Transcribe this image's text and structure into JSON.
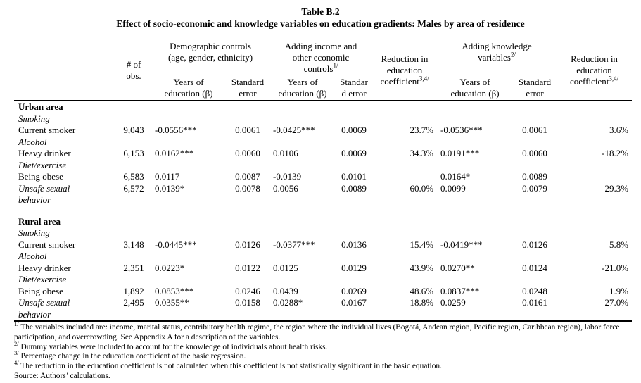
{
  "title": "Table B.2",
  "subtitle": "Effect of socio-economic and knowledge variables on education gradients: Males by area of residence",
  "table": {
    "header": {
      "obs": "# of\nobs.",
      "groups": [
        {
          "label": "Demographic controls\n(age, gender, ethnicity)",
          "sup": ""
        },
        {
          "label": "Adding income and\nother economic\ncontrols",
          "sup": "1/"
        },
        {
          "label": "Adding knowledge\nvariables",
          "sup": "2/"
        }
      ],
      "reduction1": {
        "label": "Reduction in\neducation\ncoefficient",
        "sup": "3,4/"
      },
      "reduction2": {
        "label": "Reduction in\neducation\ncoefficient",
        "sup": "3,4/"
      },
      "sub": [
        "Years of\neducation (β)",
        "Standard\nerror",
        "Years of\neducation (β)",
        "Standar\nd error",
        "Years of\neducation (β)",
        "Standard\nerror"
      ]
    },
    "sections": [
      {
        "rows": [
          {
            "label": "Urban area",
            "label_style": "bold",
            "cells": []
          },
          {
            "label": "Smoking",
            "label_style": "italic",
            "cells": []
          },
          {
            "label": "Current smoker",
            "label_style": "normal",
            "cells": [
              "9,043",
              "-0.0556***",
              "0.0061",
              "-0.0425***",
              "0.0069",
              "23.7%",
              "-0.0536***",
              "0.0061",
              "3.6%"
            ]
          },
          {
            "label": "Alcohol",
            "label_style": "italic",
            "cells": []
          },
          {
            "label": "Heavy drinker",
            "label_style": "normal",
            "cells": [
              "6,153",
              "0.0162***",
              "0.0060",
              "0.0106",
              "0.0069",
              "34.3%",
              "0.0191***",
              "0.0060",
              "-18.2%"
            ]
          },
          {
            "label": "Diet/exercise",
            "label_style": "italic",
            "cells": []
          },
          {
            "label": "Being obese",
            "label_style": "normal",
            "cells": [
              "6,583",
              "0.0117",
              "0.0087",
              "-0.0139",
              "0.0101",
              "",
              "0.0164*",
              "0.0089",
              ""
            ]
          },
          {
            "label": "Unsafe sexual\nbehavior",
            "label_style": "italic",
            "cells": [
              "6,572",
              "0.0139*",
              "0.0078",
              "0.0056",
              "0.0089",
              "60.0%",
              "0.0099",
              "0.0079",
              "29.3%"
            ]
          }
        ]
      },
      {
        "rows": [
          {
            "label": "Rural area",
            "label_style": "bold",
            "cells": []
          },
          {
            "label": "Smoking",
            "label_style": "italic",
            "cells": []
          },
          {
            "label": "Current smoker",
            "label_style": "normal",
            "cells": [
              "3,148",
              "-0.0445***",
              "0.0126",
              "-0.0377***",
              "0.0136",
              "15.4%",
              "-0.0419***",
              "0.0126",
              "5.8%"
            ]
          },
          {
            "label": "Alcohol",
            "label_style": "italic",
            "cells": []
          },
          {
            "label": "Heavy drinker",
            "label_style": "normal",
            "cells": [
              "2,351",
              "0.0223*",
              "0.0122",
              "0.0125",
              "0.0129",
              "43.9%",
              "0.0270**",
              "0.0124",
              "-21.0%"
            ]
          },
          {
            "label": "Diet/exercise",
            "label_style": "italic",
            "cells": []
          },
          {
            "label": "Being obese",
            "label_style": "normal",
            "cells": [
              "1,892",
              "0.0853***",
              "0.0246",
              "0.0439",
              "0.0269",
              "48.6%",
              "0.0837***",
              "0.0248",
              "1.9%"
            ]
          },
          {
            "label": "Unsafe sexual\nbehavior",
            "label_style": "italic",
            "cells": [
              "2,495",
              "0.0355**",
              "0.0158",
              "0.0288*",
              "0.0167",
              "18.8%",
              "0.0259",
              "0.0161",
              "27.0%"
            ]
          }
        ]
      }
    ]
  },
  "footnotes": [
    {
      "sup": "1/",
      "text": "The variables included are: income, marital status, contributory health regime, the region where the individual lives (Bogotá, Andean region, Pacific region, Caribbean region), labor force participation, and overcrowding. See Appendix A for a description of the variables."
    },
    {
      "sup": "2/",
      "text": "Dummy variables were included to account for the knowledge of individuals about health risks."
    },
    {
      "sup": "3/",
      "text": "Percentage change in the education coefficient of the basic regression."
    },
    {
      "sup": "4/",
      "text": "The reduction in the education coefficient is not calculated when this coefficient is not statistically significant in the basic equation."
    }
  ],
  "source": "Source: Authors’ calculations."
}
